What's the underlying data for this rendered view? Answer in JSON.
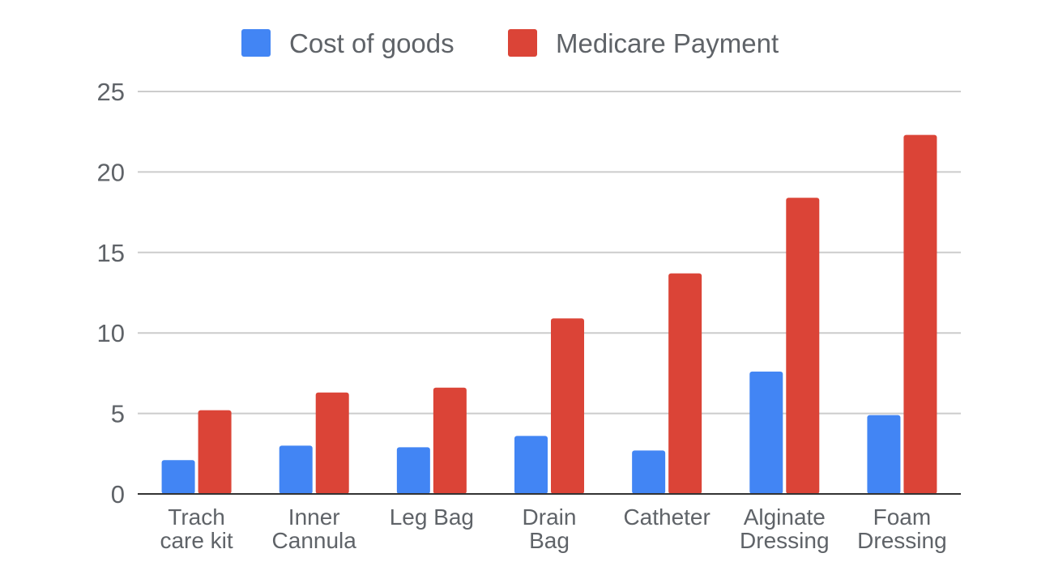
{
  "chart_data": {
    "type": "bar",
    "title": "",
    "xlabel": "",
    "ylabel": "",
    "ylim": [
      0,
      25
    ],
    "yticks": [
      "0",
      "5",
      "10",
      "15",
      "20",
      "25"
    ],
    "grid": true,
    "legend_position": "top-center",
    "categories": [
      [
        "Trach",
        "care kit"
      ],
      [
        "Inner",
        "Cannula"
      ],
      [
        "Leg Bag"
      ],
      [
        "Drain",
        "Bag"
      ],
      [
        "Catheter"
      ],
      [
        "Alginate",
        "Dressing"
      ],
      [
        "Foam",
        "Dressing"
      ]
    ],
    "series": [
      {
        "name": "Cost of goods",
        "color": "#4285f4",
        "values": [
          2.1,
          3.0,
          2.9,
          3.6,
          2.7,
          7.6,
          4.9
        ]
      },
      {
        "name": "Medicare Payment",
        "color": "#db4437",
        "values": [
          5.2,
          6.3,
          6.6,
          10.9,
          13.7,
          18.4,
          22.3
        ]
      }
    ]
  }
}
